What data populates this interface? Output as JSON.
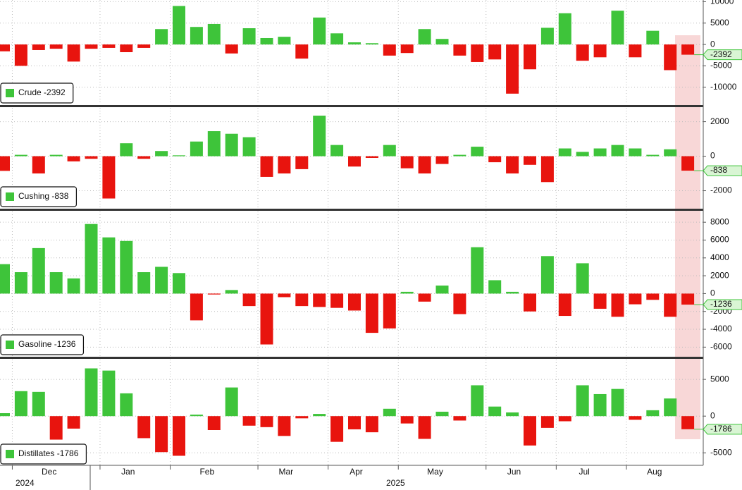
{
  "chart_data": [
    {
      "type": "bar",
      "name": "Crude",
      "positive_color": "#3ec43a",
      "negative_color": "#e8140e",
      "values": [
        -1600,
        -5000,
        -1300,
        -1000,
        -4000,
        -1000,
        -800,
        -1800,
        -800,
        3600,
        9000,
        4100,
        4800,
        -2100,
        3800,
        1500,
        1800,
        -3300,
        6300,
        2600,
        500,
        300,
        -2600,
        -2000,
        3600,
        1300,
        -2600,
        -4100,
        -3500,
        -11500,
        -5800,
        3900,
        7300,
        -3800,
        -3000,
        7900,
        -3000,
        3200,
        -6000,
        -2392
      ],
      "ylim": [
        -14000,
        10400
      ],
      "yticks": [
        -10000,
        -5000,
        0,
        5000,
        10000
      ]
    },
    {
      "type": "bar",
      "name": "Cushing",
      "positive_color": "#3ec43a",
      "negative_color": "#e8140e",
      "values": [
        -850,
        80,
        -1000,
        80,
        -300,
        -150,
        -2450,
        750,
        -150,
        300,
        50,
        850,
        1450,
        1300,
        1100,
        -1200,
        -1000,
        -750,
        2350,
        650,
        -600,
        -100,
        650,
        -700,
        -1000,
        -450,
        80,
        550,
        -350,
        -1000,
        -500,
        -1500,
        450,
        250,
        450,
        650,
        450,
        80,
        400,
        -838
      ],
      "ylim": [
        -3000,
        2800
      ],
      "yticks": [
        -2000,
        0,
        2000
      ]
    },
    {
      "type": "bar",
      "name": "Gasoline",
      "positive_color": "#3ec43a",
      "negative_color": "#e8140e",
      "values": [
        3300,
        2400,
        5100,
        2400,
        1700,
        7800,
        6300,
        5900,
        2400,
        3000,
        2300,
        -3000,
        -100,
        400,
        -1400,
        -5700,
        -400,
        -1400,
        -1500,
        -1600,
        -1900,
        -4400,
        -3900,
        200,
        -900,
        900,
        -2300,
        5200,
        1500,
        200,
        -2000,
        4200,
        -2500,
        3400,
        -1700,
        -2600,
        -1200,
        -700,
        -2600,
        -1236
      ],
      "ylim": [
        -7000,
        9200
      ],
      "yticks": [
        -6000,
        -4000,
        -2000,
        0,
        2000,
        4000,
        6000,
        8000
      ]
    },
    {
      "type": "bar",
      "name": "Distillates",
      "positive_color": "#3ec43a",
      "negative_color": "#e8140e",
      "values": [
        400,
        3400,
        3300,
        -3200,
        -1700,
        6500,
        6200,
        3100,
        -3000,
        -4900,
        -5400,
        200,
        -1900,
        3900,
        -1300,
        -1500,
        -2700,
        -300,
        300,
        -3500,
        -1800,
        -2200,
        1000,
        -1000,
        -3100,
        600,
        -600,
        4200,
        1300,
        500,
        -4000,
        -1600,
        -700,
        4200,
        3000,
        3700,
        -500,
        800,
        2400,
        -1786
      ],
      "ylim": [
        -6700,
        7700
      ],
      "yticks": [
        -5000,
        0,
        5000
      ],
      "categories": [
        null,
        "Dec",
        null,
        null,
        null,
        null,
        "Jan",
        null,
        null,
        null,
        "Feb",
        null,
        null,
        null,
        null,
        "Mar",
        null,
        null,
        null,
        "Apr",
        null,
        null,
        null,
        "May",
        null,
        null,
        null,
        null,
        "Jun",
        null,
        null,
        null,
        "Jul",
        null,
        null,
        null,
        "Aug",
        null,
        null,
        null
      ],
      "year_labels": [
        "2024",
        "2025"
      ]
    }
  ]
}
